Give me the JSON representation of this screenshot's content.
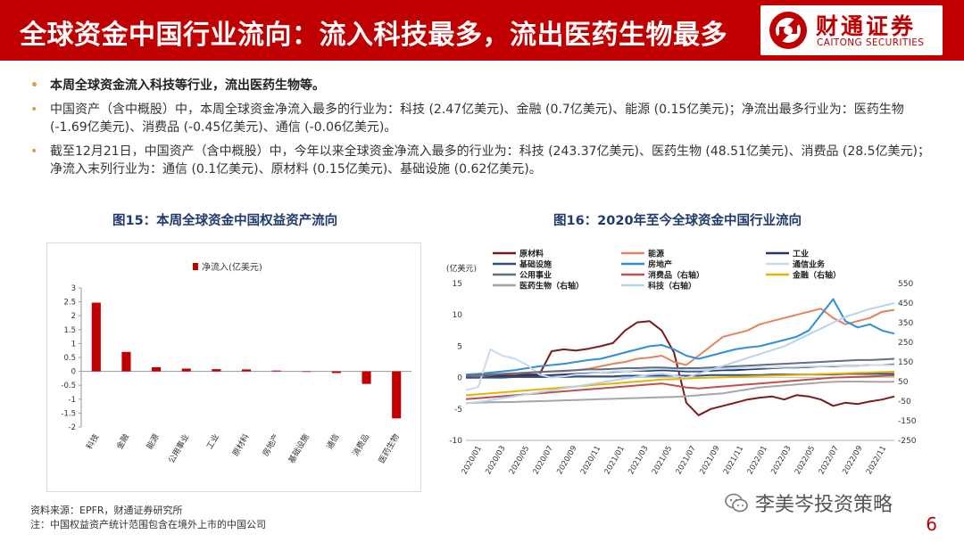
{
  "header": {
    "title": "全球资金中国行业流向：流入科技最多，流出医药生物最多",
    "logo_cn": "财通证券",
    "logo_en": "CAITONG SECURITIES"
  },
  "bullets": [
    "本周全球资金流入科技等行业，流出医药生物等。",
    "中国资产（含中概股）中，本周全球资金净流入最多的行业为：科技 (2.47亿美元)、金融 (0.7亿美元)、能源 (0.15亿美元)；净流出最多行业为：医药生物 (-1.69亿美元)、消费品 (-0.45亿美元)、通信 (-0.06亿美元)。",
    "截至12月21日，中国资产（含中概股）中，今年以来全球资金净流入最多的行业为：科技 (243.37亿美元)、医药生物 (48.51亿美元)、消费品 (28.5亿美元)；净流入末列行业为：通信 (0.1亿美元)、原材料 (0.15亿美元)、基础设施 (0.62亿美元)。"
  ],
  "footer": {
    "source": "资料来源：EPFR，财通证券研究所",
    "note": "注：中国权益资产统计范围包含在境外上市的中国公司"
  },
  "watermark": "李美岑投资策略",
  "page_number": "6",
  "colors": {
    "brand_red": "#c00000",
    "bar": "#c00000",
    "title_blue": "#1f3a6b",
    "bullet_dot": "#d7a23c"
  },
  "chart_data": [
    {
      "type": "bar",
      "title": "图15：本周全球资金中国权益资产流向",
      "legend": "净流入(亿美元)",
      "legend_position": "top-center",
      "categories": [
        "科技",
        "金融",
        "能源",
        "公用事业",
        "工业",
        "原材料",
        "房地产",
        "基础设施",
        "通信",
        "消费品",
        "医药生物"
      ],
      "values": [
        2.47,
        0.7,
        0.15,
        0.1,
        0.08,
        0.07,
        0.03,
        0.0,
        -0.06,
        -0.45,
        -1.69
      ],
      "ylim": [
        -2,
        3
      ],
      "yticks": [
        "3",
        "2.5",
        "2",
        "1.5",
        "1",
        "0.5",
        "0",
        "-0.5",
        "-1",
        "-1.5",
        "-2"
      ],
      "grid": false
    },
    {
      "type": "line",
      "title": "图16：2020年至今全球资金中国行业流向",
      "ylabel_left": "(亿美元)",
      "ylim_left": [
        -10,
        15
      ],
      "yticks_left": [
        "15",
        "10",
        "5",
        "0",
        "-5",
        "-10"
      ],
      "ylim_right": [
        -250,
        550
      ],
      "yticks_right": [
        "550",
        "450",
        "350",
        "250",
        "150",
        "50",
        "-50",
        "-150",
        "-250"
      ],
      "xticks": [
        "2020/01",
        "2020/03",
        "2020/05",
        "2020/07",
        "2020/09",
        "2020/11",
        "2021/01",
        "2021/03",
        "2021/05",
        "2021/07",
        "2021/09",
        "2021/11",
        "2022/01",
        "2022/03",
        "2022/05",
        "2022/07",
        "2022/09",
        "2022/11"
      ],
      "grid": false,
      "legend_position": "top",
      "x": [
        0,
        1,
        2,
        3,
        4,
        5,
        6,
        7,
        8,
        9,
        10,
        11,
        12,
        13,
        14,
        15,
        16,
        17,
        18,
        19,
        20,
        21,
        22,
        23,
        24,
        25,
        26,
        27,
        28,
        29,
        30,
        31,
        32,
        33,
        34,
        35
      ],
      "series": [
        {
          "name": "原材料",
          "axis": "left",
          "color": "#7b1c1c",
          "values": [
            0.3,
            0.3,
            0.4,
            0.4,
            0.4,
            0.5,
            0.5,
            4.2,
            4.5,
            4.3,
            4.6,
            5.0,
            5.5,
            7.5,
            8.8,
            9.0,
            7.5,
            4.0,
            -4.0,
            -6.0,
            -5.0,
            -4.5,
            -4.0,
            -3.5,
            -3.2,
            -3.0,
            -3.5,
            -2.8,
            -3.0,
            -3.5,
            -4.5,
            -4.0,
            -4.2,
            -3.8,
            -3.5,
            -3.0
          ]
        },
        {
          "name": "能源",
          "axis": "left",
          "color": "#e8825a",
          "values": [
            0.2,
            0.3,
            0.5,
            0.6,
            0.6,
            0.8,
            0.9,
            1.0,
            1.0,
            1.2,
            1.4,
            1.8,
            2.2,
            2.5,
            3.0,
            3.2,
            3.5,
            2.5,
            2.0,
            3.5,
            5.0,
            6.5,
            7.0,
            7.5,
            8.5,
            9.0,
            9.5,
            10.0,
            10.5,
            11.0,
            9.5,
            8.5,
            9.0,
            9.5,
            10.5,
            10.8
          ]
        },
        {
          "name": "工业",
          "axis": "left",
          "color": "#1f3a6b",
          "values": [
            0.0,
            0.0,
            0.1,
            0.2,
            0.2,
            0.3,
            0.3,
            0.4,
            0.5,
            0.6,
            0.7,
            0.8,
            0.9,
            1.0,
            1.1,
            1.1,
            1.2,
            1.1,
            1.0,
            1.0,
            1.1,
            1.2,
            1.2,
            1.3,
            1.4,
            1.5,
            1.6,
            1.6,
            1.7,
            1.8,
            1.8,
            1.9,
            1.9,
            2.0,
            2.0,
            2.1
          ]
        },
        {
          "name": "基础设施",
          "axis": "left",
          "color": "#2e4f7f",
          "values": [
            0.0,
            0.0,
            0.0,
            0.0,
            0.1,
            0.1,
            0.1,
            0.1,
            0.1,
            0.2,
            0.2,
            0.2,
            0.2,
            0.3,
            0.3,
            0.3,
            0.3,
            0.3,
            0.3,
            0.3,
            0.4,
            0.4,
            0.4,
            0.4,
            0.4,
            0.5,
            0.5,
            0.5,
            0.5,
            0.5,
            0.5,
            0.6,
            0.6,
            0.6,
            0.6,
            0.6
          ]
        },
        {
          "name": "房地产",
          "axis": "left",
          "color": "#2f8fd8",
          "values": [
            0.5,
            0.6,
            0.8,
            1.0,
            1.2,
            1.5,
            1.8,
            2.0,
            2.2,
            2.5,
            2.8,
            3.0,
            3.5,
            4.0,
            4.5,
            5.0,
            5.2,
            4.5,
            3.5,
            3.0,
            3.5,
            4.0,
            4.5,
            4.8,
            5.0,
            5.5,
            6.0,
            6.5,
            7.5,
            10.0,
            12.5,
            9.0,
            8.0,
            8.5,
            7.5,
            7.0
          ]
        },
        {
          "name": "通信业务",
          "axis": "left",
          "color": "#c9daf0",
          "values": [
            -2.0,
            -1.5,
            4.5,
            3.5,
            3.0,
            2.0,
            0.5,
            0.0,
            0.2,
            0.5,
            0.6,
            0.8,
            1.0,
            1.0,
            1.2,
            1.3,
            1.4,
            1.3,
            1.2,
            1.2,
            1.3,
            1.4,
            1.5,
            1.5,
            1.6,
            1.6,
            1.7,
            1.7,
            1.8,
            1.8,
            1.9,
            1.9,
            1.9,
            2.0,
            2.0,
            2.0
          ]
        },
        {
          "name": "公用事业",
          "axis": "left",
          "color": "#607080",
          "values": [
            0.3,
            0.4,
            0.5,
            0.6,
            0.7,
            0.8,
            0.9,
            1.0,
            1.1,
            1.2,
            1.3,
            1.3,
            1.4,
            1.5,
            1.5,
            1.6,
            1.6,
            1.5,
            1.5,
            1.5,
            1.6,
            1.7,
            1.8,
            1.9,
            2.0,
            2.1,
            2.2,
            2.3,
            2.4,
            2.5,
            2.6,
            2.7,
            2.8,
            2.8,
            2.9,
            3.0
          ]
        },
        {
          "name": "消费品（右轴）",
          "axis": "right",
          "color": "#c0504d",
          "values": [
            -40,
            -35,
            -30,
            -25,
            -20,
            -15,
            -10,
            -5,
            0,
            5,
            10,
            15,
            20,
            25,
            30,
            35,
            40,
            30,
            20,
            15,
            20,
            25,
            30,
            35,
            40,
            45,
            50,
            55,
            60,
            65,
            70,
            72,
            74,
            76,
            78,
            80
          ]
        },
        {
          "name": "金融（右轴）",
          "axis": "right",
          "color": "#e8b300",
          "values": [
            -20,
            -15,
            -10,
            -5,
            0,
            5,
            10,
            15,
            20,
            25,
            30,
            35,
            40,
            45,
            50,
            55,
            60,
            62,
            65,
            68,
            70,
            72,
            74,
            76,
            78,
            80,
            82,
            84,
            86,
            88,
            90,
            92,
            94,
            96,
            98,
            100
          ]
        },
        {
          "name": "医药生物（右轴）",
          "axis": "right",
          "color": "#a6a6a6",
          "values": [
            -60,
            -58,
            -56,
            -55,
            -54,
            -52,
            -50,
            -48,
            -46,
            -44,
            -42,
            -40,
            -38,
            -36,
            -34,
            -32,
            -30,
            -28,
            -25,
            -20,
            -15,
            -10,
            0,
            10,
            20,
            25,
            30,
            35,
            40,
            45,
            48,
            50,
            50,
            49,
            48,
            49
          ]
        },
        {
          "name": "科技（右轴）",
          "axis": "right",
          "color": "#b7d3ee",
          "values": [
            -60,
            -55,
            -45,
            -35,
            -25,
            -15,
            -5,
            5,
            15,
            25,
            35,
            45,
            55,
            65,
            75,
            85,
            90,
            80,
            70,
            90,
            110,
            130,
            150,
            170,
            190,
            210,
            230,
            260,
            290,
            320,
            350,
            380,
            400,
            420,
            435,
            450
          ]
        }
      ]
    }
  ]
}
